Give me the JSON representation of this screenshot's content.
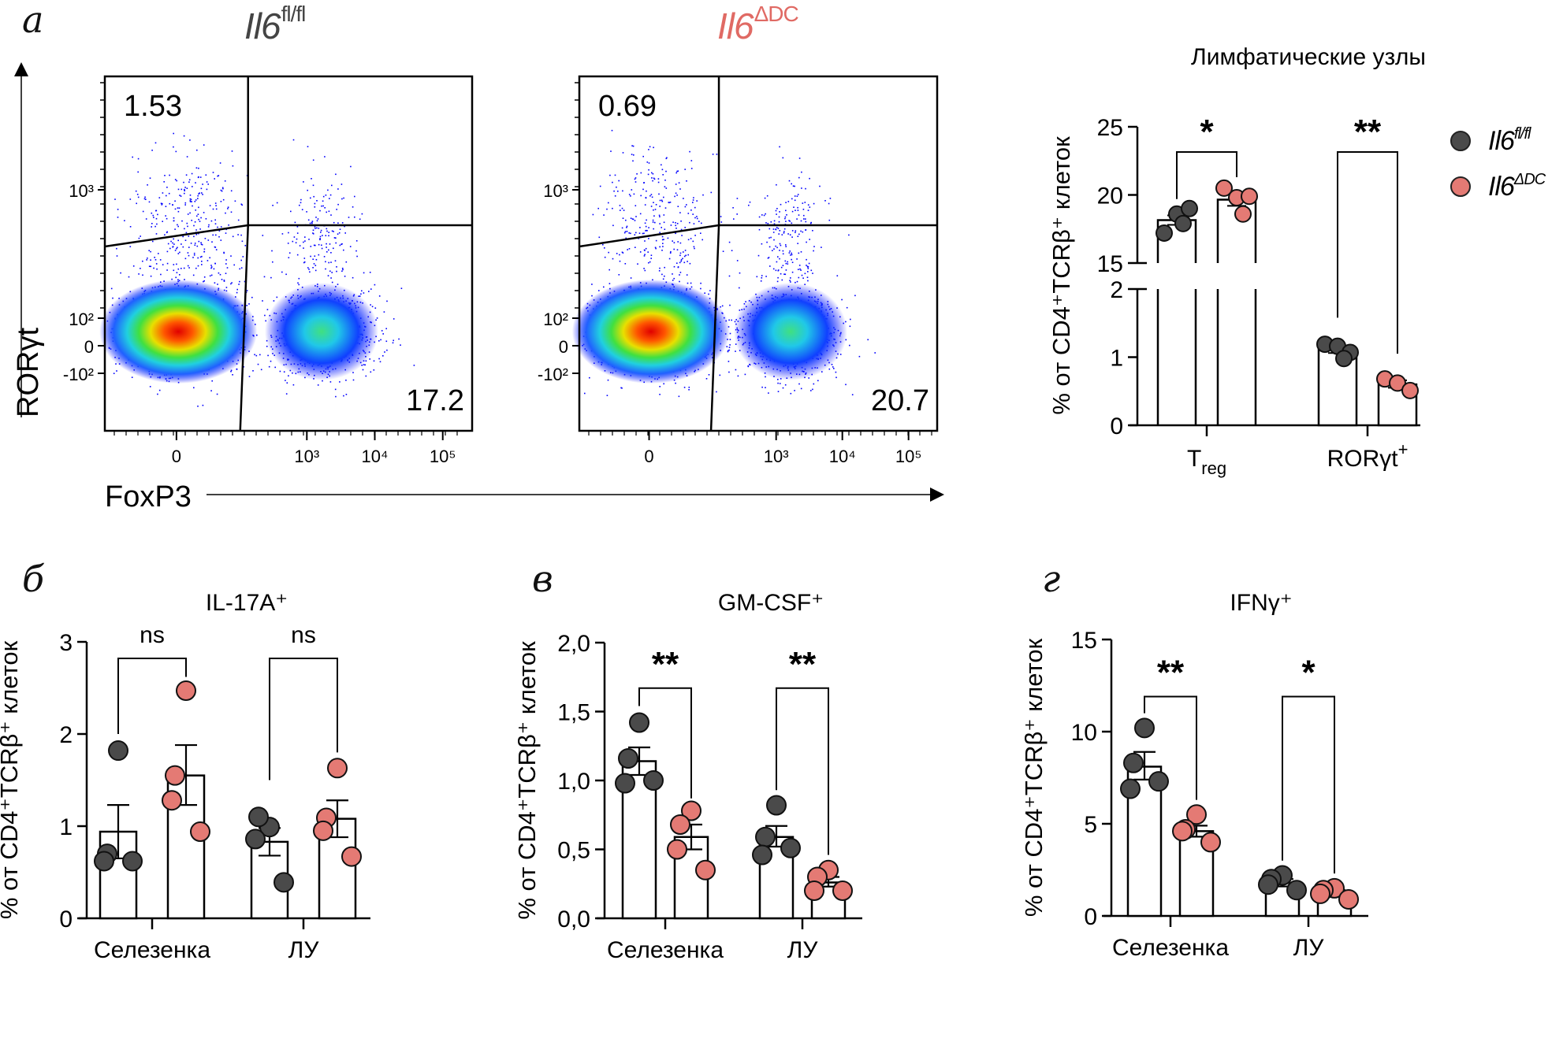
{
  "figure": {
    "panel_letters": [
      "а",
      "б",
      "в",
      "г"
    ],
    "colors": {
      "wt": "#4a4a4a",
      "ko": "#e47a74",
      "ko_title": "#e06a64",
      "flow_dots": "#0000ff"
    }
  },
  "flow": {
    "plots": [
      {
        "title_main": "Il6",
        "title_sup": "fl/fl",
        "title_color": "#444444",
        "q_upper_left": "1.53",
        "q_lower_right": "17.2"
      },
      {
        "title_main": "Il6",
        "title_sup": "ΔDC",
        "title_color": "#e06a64",
        "q_upper_left": "0.69",
        "q_lower_right": "20.7"
      }
    ],
    "y_axis_label": "RORγt",
    "x_axis_label": "FoxP3",
    "y_ticks": [
      "10³",
      "10²",
      "0",
      "-10²"
    ],
    "x_ticks": [
      "0",
      "10³",
      "10⁴",
      "10⁵"
    ]
  },
  "legend": {
    "items": [
      {
        "main": "Il6",
        "sup": "fl/fl",
        "color": "#4a4a4a"
      },
      {
        "main": "Il6",
        "sup": "ΔDC",
        "color": "#e47a74"
      }
    ]
  },
  "chart_data": [
    {
      "id": "lymph-nodes",
      "type": "bar",
      "title": "Лимфатические узлы",
      "ylabel": "% от CD4⁺TCRβ⁺ клеток",
      "categories": [
        "Treg",
        "RORγt⁺"
      ],
      "category_labels": [
        {
          "main": "T",
          "sub": "reg",
          "sup": ""
        },
        {
          "main": "RORγt",
          "sub": "",
          "sup": "+"
        }
      ],
      "broken_axis": {
        "lower": [
          0,
          2
        ],
        "upper": [
          15,
          25
        ]
      },
      "yticks_lower": [
        "0",
        "1",
        "2"
      ],
      "yticks_upper": [
        "15",
        "20",
        "25"
      ],
      "series": [
        {
          "name": "Il6 fl/fl",
          "means": [
            18.15,
            1.11
          ],
          "sem_low": [
            17.8,
            1.06
          ],
          "sem_high": [
            18.5,
            1.15
          ],
          "points": [
            [
              17.2,
              18.6,
              19.0,
              17.9
            ],
            [
              1.19,
              1.16,
              1.07,
              0.98
            ]
          ]
        },
        {
          "name": "Il6 ΔDC",
          "means": [
            19.65,
            0.6
          ],
          "sem_low": [
            19.2,
            0.55
          ],
          "sem_high": [
            20.1,
            0.66
          ],
          "points": [
            [
              20.5,
              19.8,
              19.9,
              18.6
            ],
            [
              0.68,
              0.62,
              0.51
            ]
          ]
        }
      ],
      "significance": [
        "*",
        "**"
      ]
    },
    {
      "id": "il17a",
      "type": "bar",
      "title": "IL-17A⁺",
      "ylabel": "% от CD4⁺TCRβ⁺ клеток",
      "categories": [
        "Селезенка",
        "ЛУ"
      ],
      "ylim": [
        0,
        3
      ],
      "yticks": [
        "0",
        "1",
        "2",
        "3"
      ],
      "series": [
        {
          "name": "Il6 fl/fl",
          "means": [
            0.94,
            0.83
          ],
          "sem_low": [
            0.65,
            0.68
          ],
          "sem_high": [
            1.23,
            0.98
          ],
          "points": [
            [
              1.82,
              0.7,
              0.62,
              0.62
            ],
            [
              0.99,
              1.1,
              0.86,
              0.39
            ]
          ]
        },
        {
          "name": "Il6 ΔDC",
          "means": [
            1.55,
            1.08
          ],
          "sem_low": [
            1.23,
            0.88
          ],
          "sem_high": [
            1.88,
            1.28
          ],
          "points": [
            [
              2.47,
              1.55,
              1.28,
              0.94
            ],
            [
              1.63,
              1.09,
              0.95,
              0.67
            ]
          ]
        }
      ],
      "significance": [
        "ns",
        "ns"
      ]
    },
    {
      "id": "gmcsf",
      "type": "bar",
      "title": "GM-CSF⁺",
      "ylabel": "% от CD4⁺TCRβ⁺ клеток",
      "categories": [
        "Селезенка",
        "ЛУ"
      ],
      "ylim": [
        0,
        2
      ],
      "yticks": [
        "0,0",
        "0,5",
        "1,0",
        "1,5",
        "2,0"
      ],
      "series": [
        {
          "name": "Il6 fl/fl",
          "means": [
            1.14,
            0.59
          ],
          "sem_low": [
            1.04,
            0.52
          ],
          "sem_high": [
            1.24,
            0.67
          ],
          "points": [
            [
              1.42,
              1.16,
              0.98,
              1.0
            ],
            [
              0.82,
              0.59,
              0.46,
              0.51
            ]
          ]
        },
        {
          "name": "Il6 ΔDC",
          "means": [
            0.59,
            0.26
          ],
          "sem_low": [
            0.5,
            0.23
          ],
          "sem_high": [
            0.68,
            0.3
          ],
          "points": [
            [
              0.78,
              0.68,
              0.5,
              0.35
            ],
            [
              0.35,
              0.3,
              0.2,
              0.2
            ]
          ]
        }
      ],
      "significance": [
        "**",
        "**"
      ]
    },
    {
      "id": "ifng",
      "type": "bar",
      "title": "IFNγ⁺",
      "ylabel": "% от CD4⁺TCRβ⁺ клеток",
      "categories": [
        "Селезенка",
        "ЛУ"
      ],
      "ylim": [
        0,
        15
      ],
      "yticks": [
        "0",
        "5",
        "10",
        "15"
      ],
      "series": [
        {
          "name": "Il6 fl/fl",
          "means": [
            8.1,
            1.8
          ],
          "sem_low": [
            7.4,
            1.6
          ],
          "sem_high": [
            8.9,
            2.0
          ],
          "points": [
            [
              10.2,
              8.3,
              6.9,
              7.3
            ],
            [
              2.2,
              2.0,
              1.7,
              1.4
            ]
          ]
        },
        {
          "name": "Il6 ΔDC",
          "means": [
            4.6,
            1.2
          ],
          "sem_low": [
            4.3,
            1.1
          ],
          "sem_high": [
            4.9,
            1.4
          ],
          "points": [
            [
              5.5,
              4.7,
              4.6,
              4.0
            ],
            [
              1.5,
              1.4,
              1.2,
              0.9
            ]
          ]
        }
      ],
      "significance": [
        "**",
        "*"
      ]
    }
  ]
}
